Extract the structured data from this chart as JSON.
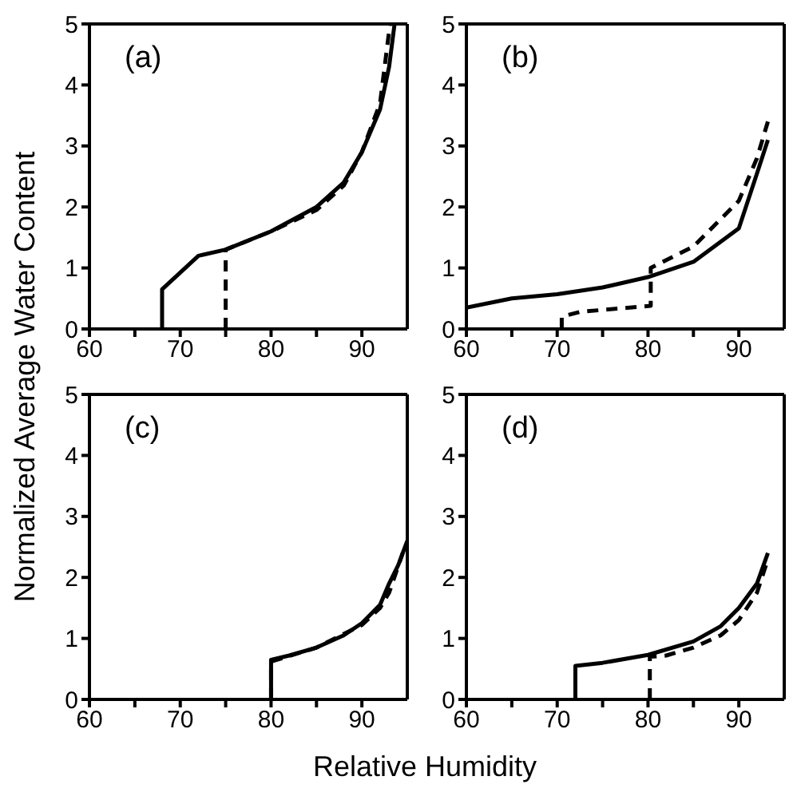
{
  "chart_data": [
    {
      "type": "line",
      "title": "(a)",
      "ylabel": "Normalized Average Water Content",
      "xlim": [
        60,
        95
      ],
      "ylim": [
        0,
        5
      ],
      "xticks": [
        60,
        {
          "value": 65,
          "label": null
        },
        70,
        {
          "value": 75,
          "label": null
        },
        80,
        {
          "value": 85,
          "label": null
        },
        90
      ],
      "yticks": [
        0,
        1,
        2,
        3,
        4,
        5
      ],
      "series": [
        {
          "color": "#000000",
          "line_style": "solid",
          "x": [
            68,
            68,
            72,
            75,
            80,
            85,
            88,
            90,
            92,
            93,
            93.6
          ],
          "values": [
            0,
            0.65,
            1.2,
            1.3,
            1.6,
            2.0,
            2.4,
            2.9,
            3.6,
            4.3,
            5.0
          ]
        },
        {
          "color": "#000000",
          "line_style": "dashed",
          "x": [
            75,
            75,
            80,
            85,
            88,
            90,
            92,
            93.1
          ],
          "values": [
            0,
            1.3,
            1.6,
            1.95,
            2.35,
            2.9,
            3.7,
            5.0
          ]
        }
      ]
    },
    {
      "type": "line",
      "title": "(b)",
      "xlim": [
        60,
        95
      ],
      "ylim": [
        0,
        5
      ],
      "xticks": [
        60,
        {
          "value": 65,
          "label": null
        },
        70,
        {
          "value": 75,
          "label": null
        },
        80,
        {
          "value": 85,
          "label": null
        },
        90
      ],
      "yticks": [
        0,
        1,
        2,
        3,
        4,
        5
      ],
      "series": [
        {
          "color": "#000000",
          "line_style": "solid",
          "x": [
            60,
            65,
            70,
            75,
            80,
            85,
            90,
            92,
            93.2
          ],
          "values": [
            0.35,
            0.5,
            0.57,
            0.68,
            0.85,
            1.1,
            1.65,
            2.55,
            3.1
          ]
        },
        {
          "color": "#000000",
          "line_style": "dashed",
          "x": [
            70.5,
            70.5,
            72.5,
            80.3,
            80.3,
            85,
            90,
            92,
            93.2
          ],
          "values": [
            0,
            0.2,
            0.28,
            0.38,
            1.0,
            1.35,
            2.1,
            2.8,
            3.4
          ]
        }
      ]
    },
    {
      "type": "line",
      "title": "(c)",
      "xlabel": "Relative Humidity",
      "xlim": [
        60,
        95
      ],
      "ylim": [
        0,
        5
      ],
      "xticks": [
        60,
        {
          "value": 65,
          "label": null
        },
        70,
        {
          "value": 75,
          "label": null
        },
        80,
        {
          "value": 85,
          "label": null
        },
        90
      ],
      "yticks": [
        0,
        1,
        2,
        3,
        4,
        5
      ],
      "series": [
        {
          "color": "#000000",
          "line_style": "solid",
          "x": [
            80,
            80,
            82,
            85,
            88,
            90,
            92,
            93,
            94,
            95
          ],
          "values": [
            0,
            0.65,
            0.72,
            0.85,
            1.05,
            1.25,
            1.55,
            1.9,
            2.2,
            2.6
          ]
        },
        {
          "color": "#000000",
          "line_style": "dashed",
          "x": [
            80,
            80,
            85,
            90,
            92,
            93,
            94.5
          ],
          "values": [
            0,
            0.62,
            0.85,
            1.22,
            1.5,
            1.75,
            2.4
          ]
        }
      ]
    },
    {
      "type": "line",
      "title": "(d)",
      "xlim": [
        60,
        95
      ],
      "ylim": [
        0,
        5
      ],
      "xticks": [
        60,
        {
          "value": 65,
          "label": null
        },
        70,
        {
          "value": 75,
          "label": null
        },
        80,
        {
          "value": 85,
          "label": null
        },
        90
      ],
      "yticks": [
        0,
        1,
        2,
        3,
        4,
        5
      ],
      "series": [
        {
          "color": "#000000",
          "line_style": "solid",
          "x": [
            72,
            72,
            75,
            80,
            85,
            88,
            90,
            92,
            93.2
          ],
          "values": [
            0,
            0.55,
            0.6,
            0.73,
            0.95,
            1.2,
            1.5,
            1.9,
            2.4
          ]
        },
        {
          "color": "#000000",
          "line_style": "dashed",
          "x": [
            80.2,
            80.2,
            82,
            85,
            88,
            90,
            92,
            93.2
          ],
          "values": [
            0,
            0.7,
            0.72,
            0.85,
            1.05,
            1.3,
            1.75,
            2.3
          ]
        }
      ]
    }
  ]
}
